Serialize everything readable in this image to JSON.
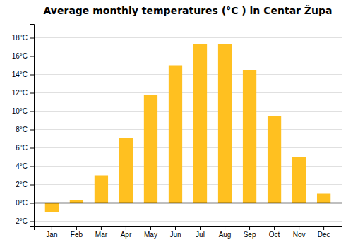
{
  "chart_data": {
    "type": "bar",
    "title": "Average monthly temperatures (°C ) in Centar Župa",
    "categories": [
      "Jan",
      "Feb",
      "Mar",
      "Apr",
      "May",
      "Jun",
      "Jul",
      "Aug",
      "Sep",
      "Oct",
      "Nov",
      "Dec"
    ],
    "values": [
      -1.0,
      0.3,
      3.0,
      7.1,
      11.8,
      15.0,
      17.3,
      17.3,
      14.5,
      9.5,
      5.0,
      1.0
    ],
    "color": "#FFC020",
    "ylim": [
      -2.5,
      19.5
    ],
    "yticks": [
      {
        "value": -2,
        "label": "-2°C"
      },
      {
        "value": 0,
        "label": "0°C"
      },
      {
        "value": 2,
        "label": "2°C"
      },
      {
        "value": 4,
        "label": "4°C"
      },
      {
        "value": 6,
        "label": "6°C"
      },
      {
        "value": 8,
        "label": "8°C"
      },
      {
        "value": 10,
        "label": "10°C"
      },
      {
        "value": 12,
        "label": "12°C"
      },
      {
        "value": 14,
        "label": "14°C"
      },
      {
        "value": 16,
        "label": "16°C"
      },
      {
        "value": 18,
        "label": "18°C"
      }
    ],
    "grid": true
  }
}
